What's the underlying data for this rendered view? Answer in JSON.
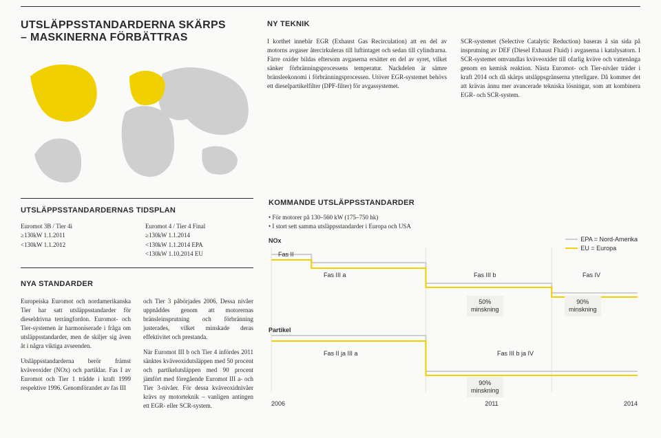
{
  "colors": {
    "yellow": "#f0d000",
    "lightGrey": "#cfcfcf",
    "ink": "#2a2a2a",
    "badgeBg": "#f2f0ea"
  },
  "header": {
    "title_line1": "UTSLÄPPSSTANDARDERNA SKÄRPS",
    "title_line2": "– MASKINERNA FÖRBÄTTRAS"
  },
  "nyTeknik": {
    "heading": "NY TEKNIK",
    "col1": "I korthet innebär EGR (Exhaust Gas Recirculation) att en del av motorns avgaser återcirkuleras till luftintaget och sedan till cylindrarna. Färre oxider bildas eftersom avgaserna ersätter en del av syret, vilket sänker förbränningsprocessens temperatur. Nackdelen är sämre bränsleekonomi i förbränningsprocessen. Utöver EGR-systemet behövs ett dieselpartikelfilter (DPF-filter) för avgassystemet.",
    "col2": "SCR-systemet (Selective Catalytic Reduction) baseras å sin sida på insprutning av DEF (Diesel Exhaust Fluid) i avgaserna i katalysatorn. I SCR-systemet omvandlas kväveoxider till ofarlig kväve och vattenånga genom en kemisk reaktion. Nästa Euromot- och Tier-nivåer träder i kraft 2014 och då skärps utsläppsgränserna ytterligare. Då kommer det att krävas ännu mer avancerade tekniska lösningar, som att kombinera EGR- och SCR-system."
  },
  "tidsplan": {
    "heading": "UTSLÄPPSSTANDARDERNAS TIDSPLAN",
    "left": [
      "Euromot 3B / Tier 4i",
      "≥130kW 1.1.2011",
      "<130kW 1.1.2012"
    ],
    "right": [
      "Euromot 4 / Tier 4 Final",
      "≥130kW 1.1.2014",
      "<130kW 1.1.2014 EPA",
      "<130kW 1.10.2014 EU"
    ]
  },
  "nyaStandarder": {
    "heading": "NYA STANDARDER",
    "p1": "Europeiska Euromot och nordamerikanska Tier har satt utsläppsstandarder för dieseldrivna terrängfordon. Euromot- och Tier-systemen är harmoniserade i fråga om utsläppsstandarder, men de skiljer sig även åt i några viktiga avseenden.",
    "p2": "Utsläppsstandarderna berör främst kväveoxider (NOx) och partiklar. Fas I av Euromot och Tier 1 trädde i kraft 1999 respektive 1996. Genomförandet av fas III",
    "p3": "och Tier 3 påbörjades 2006. Dessa nivåer uppnåddes genom att motorernas bränsleinsprutning och förbränning justerades, vilket minskade deras effektivitet och prestanda.",
    "p4": "När Euromot III b och Tier 4 infördes 2011 sänktes kväveoxidutsläppen med 50 procent och partikelutsläppen med 90 procent jämfört med föregående Euromot III a- och Tier 3-nivåer. För dessa kväveoxidnivåer krävs ny motorteknik – vanligen antingen ett EGR- eller SCR-system."
  },
  "kommande": {
    "heading": "KOMMANDE UTSLÄPPSSTANDARDER",
    "bullet1": "För motorer på 130–560 kW (175–750 hk)",
    "bullet2": "I stort sett samma utsläppsstandarder i Europa och USA",
    "legend": {
      "epa": "EPA = Nord-Amerika",
      "eu": "EU = Europa"
    },
    "axis": {
      "nox": "NOx",
      "partikel": "Partikel",
      "years": [
        "2006",
        "2011",
        "2014"
      ]
    },
    "phases": {
      "fas2": "Fas II",
      "fas3a": "Fas III a",
      "fas3b": "Fas III b",
      "fas4": "Fas IV",
      "fas2_3a": "Fas II ja III a",
      "fas3b_4": "Fas III b ja IV"
    },
    "badges": {
      "nox50": "50%\nminskning",
      "nox90": "90%\nminskning",
      "part90": "90%\nminskning"
    },
    "nox_chart": {
      "type": "step-line",
      "series": [
        {
          "name": "yellow",
          "color": "#f0d000",
          "steps": [
            {
              "x": 0,
              "y": 18
            },
            {
              "x": 55,
              "y": 18
            },
            {
              "x": 55,
              "y": 30
            },
            {
              "x": 212,
              "y": 30
            },
            {
              "x": 212,
              "y": 58
            },
            {
              "x": 384,
              "y": 58
            },
            {
              "x": 384,
              "y": 72
            },
            {
              "x": 500,
              "y": 72
            }
          ]
        },
        {
          "name": "grey",
          "color": "#cfcfcf",
          "steps": [
            {
              "x": 0,
              "y": 10
            },
            {
              "x": 55,
              "y": 10
            },
            {
              "x": 55,
              "y": 22
            },
            {
              "x": 212,
              "y": 22
            },
            {
              "x": 212,
              "y": 52
            },
            {
              "x": 384,
              "y": 52
            },
            {
              "x": 384,
              "y": 66
            },
            {
              "x": 500,
              "y": 66
            }
          ]
        }
      ]
    },
    "part_chart": {
      "type": "step-line",
      "series": [
        {
          "name": "yellow",
          "color": "#f0d000",
          "steps": [
            {
              "x": 0,
              "y": 14
            },
            {
              "x": 212,
              "y": 14
            },
            {
              "x": 212,
              "y": 58
            },
            {
              "x": 500,
              "y": 58
            }
          ]
        },
        {
          "name": "grey",
          "color": "#cfcfcf",
          "steps": [
            {
              "x": 0,
              "y": 6
            },
            {
              "x": 212,
              "y": 6
            },
            {
              "x": 212,
              "y": 52
            },
            {
              "x": 500,
              "y": 52
            }
          ]
        }
      ]
    }
  }
}
